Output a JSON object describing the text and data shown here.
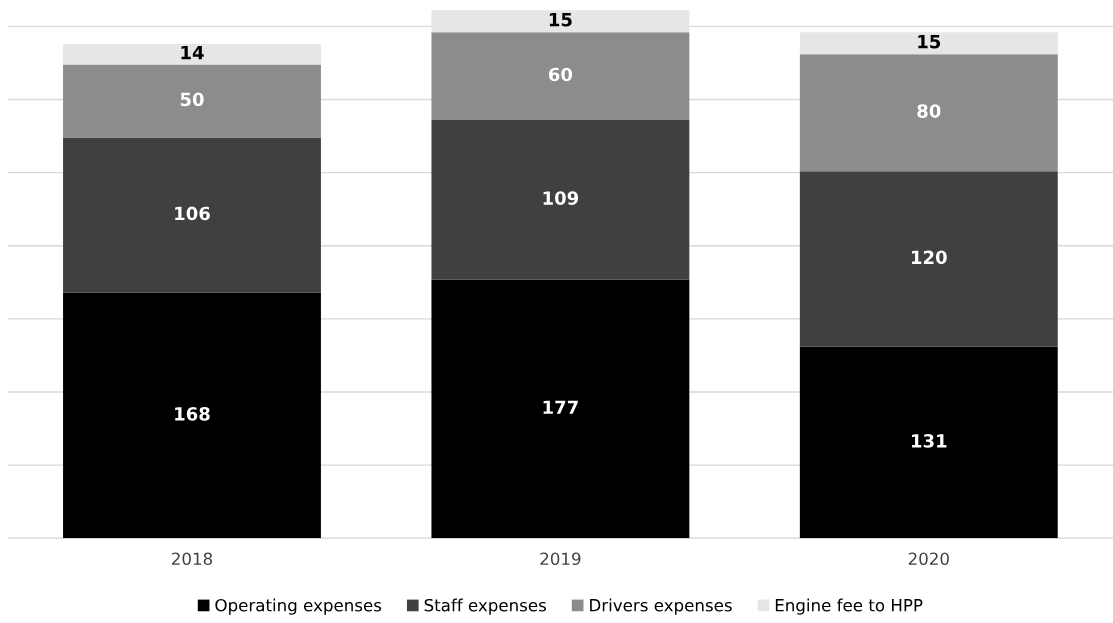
{
  "chart_data": {
    "type": "bar",
    "stacked": true,
    "categories": [
      "2018",
      "2019",
      "2020"
    ],
    "series": [
      {
        "name": "Operating expenses",
        "color": "#000000",
        "values": [
          168,
          177,
          131
        ]
      },
      {
        "name": "Staff expenses",
        "color": "#404040",
        "values": [
          106,
          109,
          120
        ]
      },
      {
        "name": "Drivers expenses",
        "color": "#8c8c8c",
        "values": [
          50,
          60,
          80
        ]
      },
      {
        "name": "Engine fee to HPP",
        "color": "#e6e6e6",
        "values": [
          14,
          15,
          15
        ]
      }
    ],
    "yticks": [
      {
        "value": 0,
        "label": null
      },
      {
        "value": 50,
        "label": null
      },
      {
        "value": 100,
        "label": null
      },
      {
        "value": 150,
        "label": null
      },
      {
        "value": 200,
        "label": null
      },
      {
        "value": 250,
        "label": null
      },
      {
        "value": 300,
        "label": null
      },
      {
        "value": 350,
        "label": null
      }
    ],
    "tick_labels": "x",
    "grid": "y",
    "legend": "bottom",
    "data_labels": true
  }
}
